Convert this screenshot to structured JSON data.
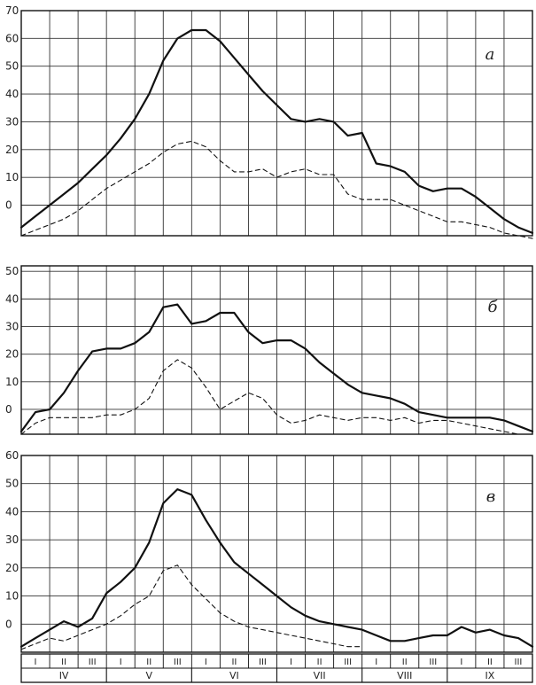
{
  "chart_data": [
    {
      "type": "line",
      "panel_label": "а",
      "y_ticks": [
        0,
        10,
        20,
        30,
        40,
        50,
        60,
        70
      ],
      "x": [
        0,
        0.5,
        1,
        1.5,
        2,
        2.5,
        3,
        3.5,
        4,
        4.5,
        5,
        5.5,
        6,
        6.5,
        7,
        7.5,
        8,
        8.5,
        9,
        9.5,
        10,
        10.5,
        11,
        11.5,
        12,
        12.5,
        13,
        13.5,
        14,
        14.5,
        15,
        15.5,
        16,
        16.5,
        17,
        17.5,
        18
      ],
      "series": [
        {
          "style": "solid",
          "values": [
            -8,
            -4,
            0,
            4,
            8,
            13,
            18,
            24,
            31,
            40,
            52,
            60,
            63,
            63,
            59,
            53,
            47,
            41,
            36,
            31,
            30,
            31,
            30,
            25,
            26,
            15,
            14,
            12,
            7,
            5,
            6,
            6,
            3,
            -1,
            -5,
            -8,
            -10
          ]
        },
        {
          "style": "dashed",
          "values": [
            -11,
            -9,
            -7,
            -5,
            -2,
            2,
            6,
            9,
            12,
            15,
            19,
            22,
            23,
            21,
            16,
            12,
            12,
            13,
            10,
            12,
            13,
            11,
            11,
            4,
            2,
            2,
            2,
            0,
            -2,
            -4,
            -6,
            -6,
            -7,
            -8,
            -10,
            -11,
            -12
          ]
        }
      ],
      "ylim": [
        -11,
        70
      ]
    },
    {
      "type": "line",
      "panel_label": "б",
      "y_ticks": [
        0,
        10,
        20,
        30,
        40,
        50
      ],
      "x": [
        0,
        0.5,
        1,
        1.5,
        2,
        2.5,
        3,
        3.5,
        4,
        4.5,
        5,
        5.5,
        6,
        6.5,
        7,
        7.5,
        8,
        8.5,
        9,
        9.5,
        10,
        10.5,
        11,
        11.5,
        12,
        12.5,
        13,
        13.5,
        14,
        14.5,
        15,
        15.5,
        16,
        16.5,
        17,
        17.5,
        18
      ],
      "series": [
        {
          "style": "solid",
          "values": [
            -8,
            -1,
            0,
            6,
            14,
            21,
            22,
            22,
            24,
            28,
            37,
            38,
            31,
            32,
            35,
            35,
            28,
            24,
            25,
            25,
            22,
            17,
            13,
            9,
            6,
            5,
            4,
            2,
            -1,
            -2,
            -3,
            -3,
            -3,
            -3,
            -4,
            -6,
            -8
          ]
        },
        {
          "style": "dashed",
          "values": [
            -9,
            -5,
            -3,
            -3,
            -3,
            -3,
            -2,
            -2,
            0,
            4,
            14,
            18,
            15,
            8,
            0,
            3,
            6,
            4,
            -2,
            -5,
            -4,
            -2,
            -3,
            -4,
            -3,
            -3,
            -4,
            -3,
            -5,
            -4,
            -4,
            -5,
            -6,
            -7,
            -8,
            -9,
            -9
          ]
        }
      ],
      "ylim": [
        -9,
        52
      ]
    },
    {
      "type": "line",
      "panel_label": "в",
      "y_ticks": [
        0,
        10,
        20,
        30,
        40,
        50,
        60
      ],
      "x": [
        0,
        0.5,
        1,
        1.5,
        2,
        2.5,
        3,
        3.5,
        4,
        4.5,
        5,
        5.5,
        6,
        6.5,
        7,
        7.5,
        8,
        8.5,
        9,
        9.5,
        10,
        10.5,
        11,
        11.5,
        12,
        12.5,
        13,
        13.5,
        14,
        14.5,
        15,
        15.5,
        16,
        16.5,
        17,
        17.5,
        18
      ],
      "series": [
        {
          "style": "solid",
          "values": [
            -8,
            -5,
            -2,
            1,
            -1,
            2,
            11,
            15,
            20,
            29,
            43,
            48,
            46,
            37,
            29,
            22,
            18,
            14,
            10,
            6,
            3,
            1,
            0,
            -1,
            -2,
            -4,
            -6,
            -6,
            -5,
            -4,
            -4,
            -1,
            -3,
            -2,
            -4,
            -5,
            -8
          ]
        },
        {
          "style": "dashed",
          "values": [
            -9,
            -7,
            -5,
            -6,
            -4,
            -2,
            0,
            3,
            7,
            10,
            19,
            21,
            14,
            9,
            4,
            1,
            -1,
            -2,
            -3,
            -4,
            -5,
            -6,
            -7,
            -8,
            -8,
            null,
            null,
            null,
            null,
            null,
            null,
            null,
            null,
            null,
            null,
            null,
            null
          ]
        }
      ],
      "ylim": [
        -10,
        60
      ]
    }
  ],
  "x_axis": {
    "decades": [
      "I",
      "II",
      "III",
      "I",
      "II",
      "III",
      "I",
      "II",
      "III",
      "I",
      "II",
      "III",
      "I",
      "II",
      "III",
      "I",
      "II",
      "III"
    ],
    "months": [
      "IV",
      "V",
      "VI",
      "VII",
      "VIII",
      "IX"
    ]
  }
}
